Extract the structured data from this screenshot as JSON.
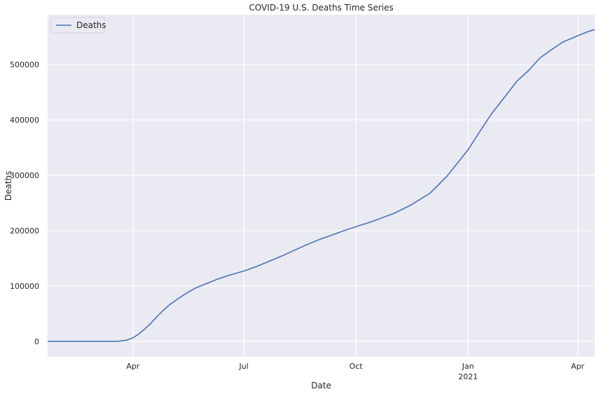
{
  "chart_data": {
    "type": "line",
    "title": "COVID-19 U.S. Deaths Time Series",
    "xlabel": "Date",
    "ylabel": "Deaths",
    "xlim": [
      "2020-01-22",
      "2021-04-15"
    ],
    "ylim": [
      -28000,
      590000
    ],
    "grid": true,
    "legend_position": "top-left",
    "background_color": "#eaeaf2",
    "grid_color": "#ffffff",
    "line_color": "#4c72b0",
    "x_ticks": [
      {
        "date": "2020-04-01",
        "label": "Apr",
        "sublabel": ""
      },
      {
        "date": "2020-07-01",
        "label": "Jul",
        "sublabel": ""
      },
      {
        "date": "2020-10-01",
        "label": "Oct",
        "sublabel": ""
      },
      {
        "date": "2021-01-01",
        "label": "Jan",
        "sublabel": "2021"
      },
      {
        "date": "2021-04-01",
        "label": "Apr",
        "sublabel": ""
      }
    ],
    "y_ticks": [
      0,
      100000,
      200000,
      300000,
      400000,
      500000
    ],
    "series": [
      {
        "name": "Deaths",
        "x": [
          "2020-01-22",
          "2020-02-15",
          "2020-03-10",
          "2020-03-20",
          "2020-03-25",
          "2020-03-28",
          "2020-04-01",
          "2020-04-05",
          "2020-04-10",
          "2020-04-15",
          "2020-04-20",
          "2020-04-25",
          "2020-05-01",
          "2020-05-08",
          "2020-05-15",
          "2020-05-22",
          "2020-06-01",
          "2020-06-10",
          "2020-06-20",
          "2020-07-01",
          "2020-07-10",
          "2020-07-20",
          "2020-08-01",
          "2020-08-10",
          "2020-08-20",
          "2020-09-01",
          "2020-09-10",
          "2020-09-20",
          "2020-10-01",
          "2020-10-15",
          "2020-11-01",
          "2020-11-15",
          "2020-12-01",
          "2020-12-15",
          "2021-01-01",
          "2021-01-10",
          "2021-01-20",
          "2021-02-01",
          "2021-02-10",
          "2021-02-20",
          "2021-03-01",
          "2021-03-10",
          "2021-03-20",
          "2021-04-01",
          "2021-04-10",
          "2021-04-15"
        ],
        "y": [
          0,
          0,
          30,
          300,
          1500,
          3000,
          6500,
          12000,
          21000,
          31000,
          43000,
          54000,
          66000,
          77000,
          87000,
          96000,
          105000,
          113000,
          120000,
          127000,
          134000,
          143000,
          154000,
          163000,
          173000,
          184000,
          191000,
          199000,
          207000,
          217000,
          231000,
          246000,
          268000,
          299000,
          346000,
          377000,
          410000,
          444000,
          470000,
          490000,
          512000,
          526000,
          541000,
          552000,
          560000,
          563000
        ]
      }
    ]
  }
}
